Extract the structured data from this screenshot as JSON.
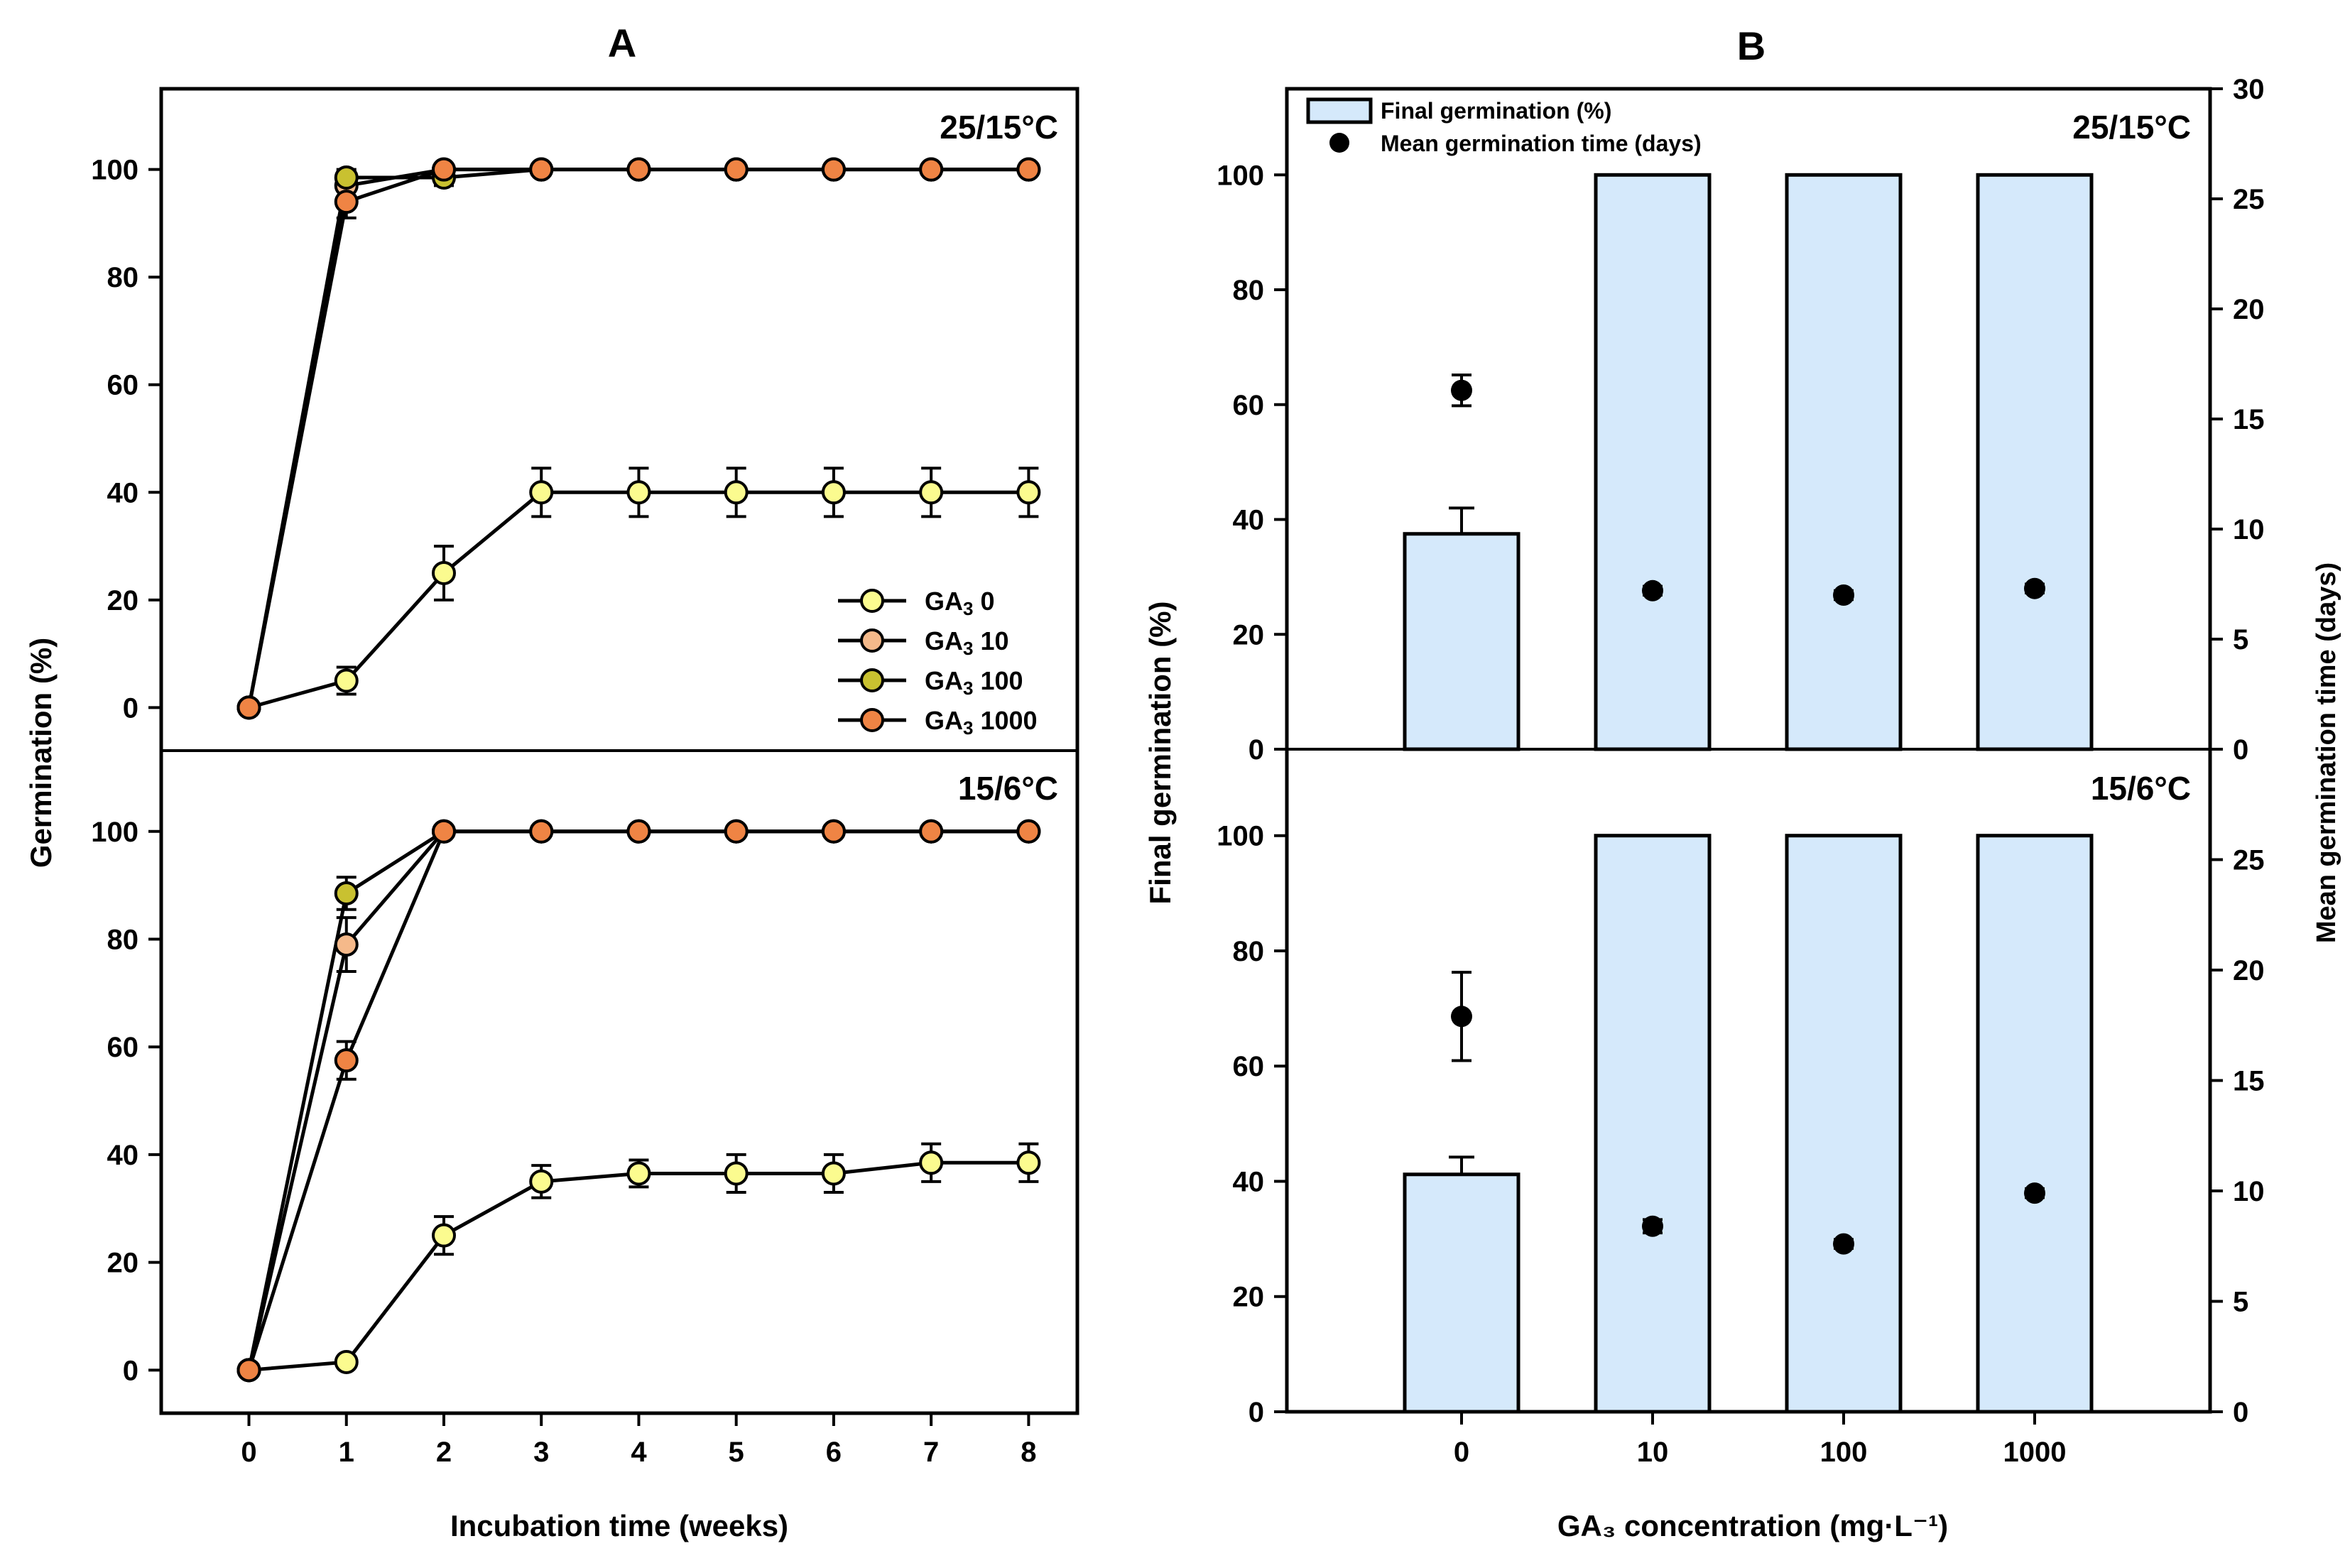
{
  "panels": {
    "a_label": "A",
    "b_label": "B"
  },
  "colors": {
    "ga0": "#fbfb8f",
    "ga10": "#f5b98a",
    "ga100": "#c9c130",
    "ga1000": "#ef8444",
    "bar_fill": "#d5e9fb",
    "mgt_dot": "#000000"
  },
  "chart_data": [
    {
      "id": "A",
      "type": "line",
      "title": "A",
      "xlabel": "Incubation time (weeks)",
      "ylabel": "Germination (%)",
      "x": [
        0,
        1,
        2,
        3,
        4,
        5,
        6,
        7,
        8
      ],
      "xlim": [
        -0.9,
        8.5
      ],
      "ylim": [
        -8,
        115
      ],
      "yticks": [
        0,
        20,
        40,
        60,
        80,
        100
      ],
      "legend_location": "right-middle of top subplot",
      "legend": {
        "prefix": "GA",
        "sub": "3",
        "levels": [
          "0",
          "10",
          "100",
          "1000"
        ]
      },
      "subplots": [
        {
          "label": "25/15°C",
          "series": [
            {
              "name": "GA3 0",
              "color_key": "ga0",
              "values": [
                0,
                5,
                25,
                40,
                40,
                40,
                40,
                40,
                40
              ],
              "errors": [
                0,
                2.5,
                5,
                4.5,
                4.5,
                4.5,
                4.5,
                4.5,
                4.5
              ]
            },
            {
              "name": "GA3 10",
              "color_key": "ga10",
              "values": [
                0,
                97,
                100,
                100,
                100,
                100,
                100,
                100,
                100
              ],
              "errors": [
                0,
                2,
                0,
                0,
                0,
                0,
                0,
                0,
                0
              ]
            },
            {
              "name": "GA3 100",
              "color_key": "ga100",
              "values": [
                0,
                98.5,
                98.5,
                100,
                100,
                100,
                100,
                100,
                100
              ],
              "errors": [
                0,
                1.5,
                1.5,
                0,
                0,
                0,
                0,
                0,
                0
              ]
            },
            {
              "name": "GA3 1000",
              "color_key": "ga1000",
              "values": [
                0,
                94,
                100,
                100,
                100,
                100,
                100,
                100,
                100
              ],
              "errors": [
                0,
                3,
                0,
                0,
                0,
                0,
                0,
                0,
                0
              ]
            }
          ]
        },
        {
          "label": "15/6°C",
          "series": [
            {
              "name": "GA3 0",
              "color_key": "ga0",
              "values": [
                0,
                1.5,
                25,
                35,
                36.5,
                36.5,
                36.5,
                38.5,
                38.5
              ],
              "errors": [
                0,
                1,
                3.5,
                3,
                2.5,
                3.5,
                3.5,
                3.5,
                3.5
              ]
            },
            {
              "name": "GA3 10",
              "color_key": "ga10",
              "values": [
                0,
                79,
                100,
                100,
                100,
                100,
                100,
                100,
                100
              ],
              "errors": [
                0,
                5,
                0,
                0,
                0,
                0,
                0,
                0,
                0
              ]
            },
            {
              "name": "GA3 100",
              "color_key": "ga100",
              "values": [
                0,
                88.5,
                100,
                100,
                100,
                100,
                100,
                100,
                100
              ],
              "errors": [
                0,
                3,
                0,
                0,
                0,
                0,
                0,
                0,
                0
              ]
            },
            {
              "name": "GA3 1000",
              "color_key": "ga1000",
              "values": [
                0,
                57.5,
                100,
                100,
                100,
                100,
                100,
                100,
                100
              ],
              "errors": [
                0,
                3.5,
                0,
                0,
                0,
                0,
                0,
                0,
                0
              ]
            }
          ]
        }
      ]
    },
    {
      "id": "B",
      "type": "bar",
      "title": "B",
      "xlabel": "GA₃ concentration (mg·L⁻¹)",
      "ylabel": "Final germination (%)",
      "y2label": "Mean germination time (days)",
      "categories": [
        "0",
        "10",
        "100",
        "1000"
      ],
      "ylim": [
        0,
        115
      ],
      "yticks": [
        0,
        20,
        40,
        60,
        80,
        100
      ],
      "y2lim": [
        0,
        30
      ],
      "y2ticks": [
        0,
        5,
        10,
        15,
        20,
        25,
        30
      ],
      "legend_location": "top-left of top subplot",
      "legend": {
        "bar": "Final germination (%)",
        "dot": "Mean germination time (days)"
      },
      "subplots": [
        {
          "label": "25/15°C",
          "final_germination": [
            37.5,
            100,
            100,
            100
          ],
          "final_germination_err": [
            4.5,
            0,
            0,
            0
          ],
          "mean_germination_time": [
            16.3,
            7.2,
            7.0,
            7.3
          ],
          "mean_germination_time_err": [
            0.7,
            0.2,
            0.2,
            0.2
          ]
        },
        {
          "label": "15/6°C",
          "final_germination": [
            41.2,
            100,
            100,
            100
          ],
          "final_germination_err": [
            3,
            0,
            0,
            0
          ],
          "mean_germination_time": [
            17.9,
            8.4,
            7.6,
            9.9
          ],
          "mean_germination_time_err": [
            2,
            0.3,
            0.2,
            0.2
          ]
        }
      ]
    }
  ]
}
